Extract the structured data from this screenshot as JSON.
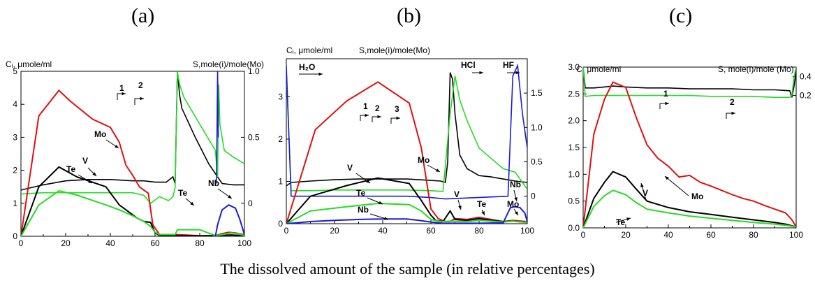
{
  "figure": {
    "x_caption": "The dissolved amount of the sample (in relative percentages)"
  },
  "chart_data": [
    {
      "type": "line",
      "panel_label": "(a)",
      "ylabel": "Cᵢ, μmole/ml",
      "y2label": "S,mole(i)/mole(Mo)",
      "xlim": [
        0,
        100
      ],
      "ylim": [
        0,
        5
      ],
      "y2lim": [
        -0.25,
        1.0
      ],
      "x_ticks": [
        "0",
        "20",
        "40",
        "60",
        "80",
        "100"
      ],
      "y_ticks": [
        "0",
        "1",
        "2",
        "3",
        "4",
        "5"
      ],
      "y2_ticks": [
        "0",
        "0.5",
        "1.0"
      ],
      "colors": {
        "Mo": "#e01010",
        "V": "#000000",
        "Te": "#22dd22",
        "Nb": "#1a1adc"
      },
      "series": [
        {
          "name": "Mo",
          "color": "#e01010",
          "x": [
            0,
            8,
            17,
            22,
            32,
            40,
            44,
            47,
            50,
            53,
            55,
            57,
            59,
            62,
            70,
            80,
            87,
            90,
            93,
            96,
            100
          ],
          "y": [
            0,
            3.65,
            4.42,
            4.1,
            3.55,
            3.3,
            2.85,
            2.15,
            1.85,
            1.5,
            1.4,
            1.3,
            0.35,
            0.05,
            0.05,
            0.02,
            0.02,
            0.08,
            0.12,
            0.1,
            0.05
          ]
        },
        {
          "name": "V",
          "color": "#000000",
          "x": [
            0,
            8,
            17,
            25,
            38,
            44,
            48,
            52,
            55,
            58,
            60,
            62,
            70,
            80,
            87,
            90,
            94,
            100
          ],
          "y": [
            0,
            1.5,
            2.1,
            1.8,
            1.5,
            0.95,
            0.75,
            0.55,
            0.45,
            0.42,
            0.1,
            0.03,
            0.02,
            0.01,
            0.02,
            0.03,
            0.04,
            0.02
          ]
        },
        {
          "name": "Te",
          "color": "#22dd22",
          "x": [
            0,
            8,
            17,
            25,
            38,
            44,
            50,
            55,
            58,
            60,
            62,
            69,
            70,
            80,
            87,
            90,
            94,
            97,
            100
          ],
          "y": [
            0,
            0.95,
            1.38,
            1.25,
            0.95,
            0.8,
            0.62,
            0.45,
            0.3,
            0.12,
            0.05,
            0.05,
            0.2,
            0.2,
            0.02,
            0.05,
            0.1,
            0.08,
            0.02
          ]
        },
        {
          "name": "Nb",
          "color": "#1a1adc",
          "x": [
            87,
            88,
            90,
            93,
            96,
            98,
            100
          ],
          "y": [
            0,
            0.35,
            0.8,
            0.95,
            0.85,
            0.5,
            0.05
          ]
        }
      ],
      "stoich_series": [
        {
          "name": "S(V)",
          "color": "#000000",
          "x": [
            0,
            10,
            20,
            30,
            40,
            50,
            55,
            60,
            65,
            68,
            69,
            70,
            71,
            72,
            78,
            84,
            88,
            90,
            95,
            100
          ],
          "y": [
            0.1,
            0.14,
            0.17,
            0.18,
            0.18,
            0.17,
            0.17,
            0.16,
            0.16,
            0.2,
            0.15,
            1.0,
            0.82,
            0.72,
            0.5,
            0.3,
            0.2,
            0.15,
            0.14,
            0.14
          ]
        },
        {
          "name": "S(Te)",
          "color": "#22dd22",
          "x": [
            0,
            10,
            20,
            30,
            40,
            50,
            55,
            58,
            62,
            66,
            68,
            69,
            70,
            71,
            73,
            80,
            87,
            88,
            88.5,
            89,
            91,
            95,
            100
          ],
          "y": [
            0.07,
            0.08,
            0.08,
            0.08,
            0.08,
            0.08,
            0.06,
            0.0,
            0.05,
            0.02,
            0.05,
            0.12,
            1.0,
            0.9,
            0.8,
            0.6,
            0.4,
            0.2,
            0.9,
            0.6,
            0.4,
            0.35,
            0.3
          ]
        },
        {
          "name": "S(Nb)",
          "color": "#1a1adc",
          "x": [
            87.5,
            88,
            88.3
          ],
          "y": [
            0.15,
            1.0,
            0.5
          ]
        }
      ],
      "annotations": [
        "1",
        "2",
        "Mo",
        "V",
        "Te",
        "Te",
        "Nb"
      ]
    },
    {
      "type": "line",
      "panel_label": "(b)",
      "ylabel": "Cᵢ, μmole/ml",
      "y2label": "S,mole(i)/mole(Mo)",
      "xlim": [
        0,
        100
      ],
      "ylim": [
        0,
        3.9
      ],
      "y2lim": [
        -0.4,
        2.0
      ],
      "x_ticks": [
        "0",
        "20",
        "40",
        "60",
        "80",
        "100"
      ],
      "y_ticks": [
        "0",
        "1",
        "2",
        "3"
      ],
      "y2_ticks": [
        "0",
        "0.5",
        "1.0",
        "1.5"
      ],
      "series": [
        {
          "name": "Mo",
          "color": "#e01010",
          "x": [
            0,
            12,
            25,
            38,
            51,
            56,
            60,
            63,
            66,
            68,
            70,
            75,
            80,
            85,
            90,
            94,
            100
          ],
          "y": [
            0,
            2.22,
            2.9,
            3.35,
            2.85,
            1.8,
            0.35,
            0.12,
            0.05,
            0.05,
            0.12,
            0.1,
            0.15,
            0.1,
            0.05,
            0.08,
            0.05
          ]
        },
        {
          "name": "V",
          "color": "#000000",
          "x": [
            0,
            10,
            25,
            38,
            51,
            56,
            60,
            62,
            65,
            68,
            70,
            75,
            80,
            85,
            90,
            94,
            100
          ],
          "y": [
            0,
            0.65,
            0.9,
            1.08,
            0.95,
            0.55,
            0.2,
            0.08,
            0.05,
            0.3,
            0.1,
            0.08,
            0.12,
            0.08,
            0.05,
            0.06,
            0.03
          ]
        },
        {
          "name": "Te",
          "color": "#22dd22",
          "x": [
            0,
            10,
            25,
            38,
            51,
            56,
            60,
            64,
            68,
            75,
            80,
            85,
            90,
            94,
            100
          ],
          "y": [
            0,
            0.3,
            0.4,
            0.48,
            0.45,
            0.3,
            0.1,
            0.05,
            0.06,
            0.05,
            0.08,
            0.06,
            0.04,
            0.06,
            0.03
          ]
        },
        {
          "name": "Nb",
          "color": "#1a1adc",
          "x": [
            0,
            10,
            20,
            30,
            40,
            50,
            55,
            60,
            65,
            70,
            80,
            90,
            93,
            95,
            97,
            99,
            100
          ],
          "y": [
            0,
            0.05,
            0.08,
            0.1,
            0.11,
            0.11,
            0.08,
            0.04,
            0.01,
            0.01,
            0.01,
            0.02,
            0.38,
            0.4,
            0.38,
            0.25,
            0.05
          ]
        }
      ],
      "stoich_series": [
        {
          "name": "S(V)",
          "color": "#000000",
          "x": [
            0,
            2,
            10,
            20,
            30,
            40,
            50,
            55,
            60,
            64,
            66,
            67,
            68,
            69,
            70,
            72,
            75,
            80,
            85,
            90,
            95,
            100
          ],
          "y": [
            0.15,
            0.2,
            0.22,
            0.24,
            0.25,
            0.25,
            0.25,
            0.24,
            0.23,
            0.22,
            0.2,
            0.5,
            1.8,
            1.7,
            1.2,
            0.6,
            0.4,
            0.3,
            0.28,
            0.25,
            0.22,
            0.2
          ]
        },
        {
          "name": "S(Te)",
          "color": "#22dd22",
          "x": [
            0,
            2,
            10,
            20,
            30,
            40,
            50,
            60,
            65,
            68,
            70,
            72,
            75,
            80,
            85,
            90,
            95,
            98,
            100
          ],
          "y": [
            1.8,
            0.08,
            0.08,
            0.09,
            0.09,
            0.09,
            0.09,
            0.08,
            0.07,
            1.2,
            1.75,
            1.4,
            1.1,
            0.7,
            0.55,
            0.4,
            0.35,
            0.2,
            0.1
          ]
        },
        {
          "name": "S(Nb)",
          "color": "#1a1adc",
          "x": [
            0,
            2,
            10,
            20,
            30,
            40,
            50,
            60,
            66,
            92,
            94,
            96,
            98,
            100
          ],
          "y": [
            1.9,
            0.0,
            0.0,
            0.0,
            0.0,
            0.0,
            0.0,
            -0.02,
            -0.04,
            0.0,
            1.75,
            1.9,
            1.2,
            0.7
          ]
        }
      ],
      "annotations": [
        "H₂O",
        "HCl",
        "HF",
        "1",
        "2",
        "3",
        "V",
        "Mo",
        "Te",
        "Nb",
        "V",
        "Te",
        "Nb",
        "Mo"
      ]
    },
    {
      "type": "line",
      "panel_label": "(c)",
      "ylabel": "C, μmole/ml",
      "y2label": "S, mole(i)/mole (Mo)",
      "xlim": [
        0,
        100
      ],
      "ylim": [
        0,
        3.0
      ],
      "y2lim": [
        -1.2,
        0.5
      ],
      "x_ticks": [
        "0",
        "20",
        "40",
        "60",
        "80",
        "100"
      ],
      "y_ticks": [
        "0.0",
        "0.5",
        "1.0",
        "1.5",
        "2.0",
        "2.5",
        "3.0"
      ],
      "y2_ticks": [
        "0.2",
        "0.4"
      ],
      "series": [
        {
          "name": "Mo",
          "color": "#e01010",
          "x": [
            0,
            5,
            10,
            14,
            20,
            25,
            30,
            35,
            40,
            45,
            50,
            55,
            60,
            65,
            70,
            75,
            80,
            85,
            90,
            95,
            98,
            100
          ],
          "y": [
            0,
            1.75,
            2.4,
            2.72,
            2.62,
            2.05,
            1.55,
            1.3,
            1.15,
            0.95,
            0.98,
            0.85,
            0.78,
            0.7,
            0.62,
            0.55,
            0.5,
            0.42,
            0.35,
            0.28,
            0.15,
            0.02
          ]
        },
        {
          "name": "V",
          "color": "#000000",
          "x": [
            0,
            5,
            10,
            14,
            20,
            25,
            30,
            40,
            50,
            60,
            70,
            80,
            90,
            95,
            100
          ],
          "y": [
            0,
            0.55,
            0.85,
            1.05,
            0.95,
            0.72,
            0.5,
            0.38,
            0.3,
            0.25,
            0.2,
            0.15,
            0.1,
            0.07,
            0.02
          ]
        },
        {
          "name": "Te",
          "color": "#22dd22",
          "x": [
            0,
            5,
            10,
            14,
            20,
            25,
            30,
            40,
            50,
            60,
            70,
            80,
            90,
            95,
            100
          ],
          "y": [
            0,
            0.4,
            0.6,
            0.7,
            0.62,
            0.47,
            0.35,
            0.28,
            0.22,
            0.18,
            0.14,
            0.1,
            0.07,
            0.05,
            0.02
          ]
        }
      ],
      "stoich_series": [
        {
          "name": "S(V)",
          "color": "#000000",
          "x": [
            0,
            1,
            5,
            10,
            14,
            20,
            30,
            40,
            50,
            60,
            70,
            80,
            90,
            97,
            98,
            99,
            100
          ],
          "y": [
            0.5,
            0.28,
            0.28,
            0.29,
            0.3,
            0.29,
            0.28,
            0.28,
            0.27,
            0.27,
            0.27,
            0.26,
            0.26,
            0.25,
            0.18,
            0.3,
            0.45
          ]
        },
        {
          "name": "S(Te)",
          "color": "#22dd22",
          "x": [
            0,
            1,
            5,
            10,
            20,
            30,
            40,
            50,
            60,
            70,
            80,
            90,
            97,
            98,
            99,
            100
          ],
          "y": [
            0.5,
            0.19,
            0.2,
            0.2,
            0.2,
            0.2,
            0.2,
            0.2,
            0.19,
            0.19,
            0.19,
            0.18,
            0.18,
            0.2,
            0.4,
            0.5
          ]
        }
      ],
      "annotations": [
        "1",
        "2",
        "Mo",
        "V",
        "Te"
      ]
    }
  ]
}
